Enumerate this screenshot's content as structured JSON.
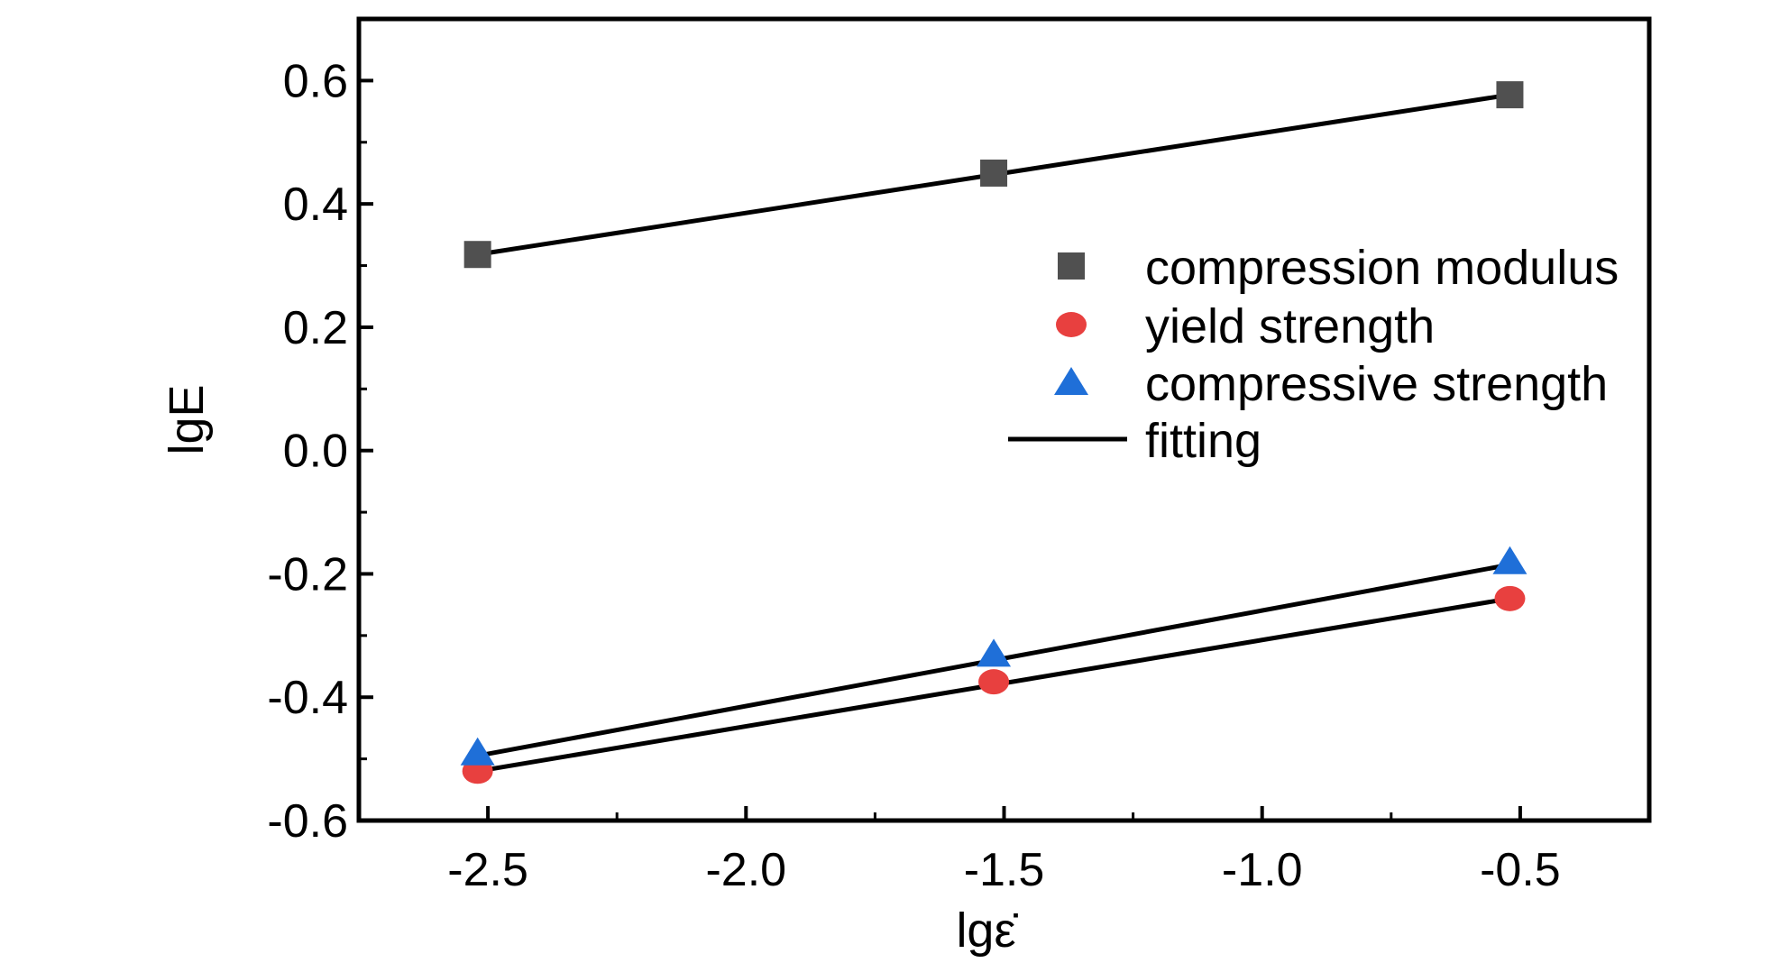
{
  "chart_data": {
    "type": "scatter",
    "xlabel": "lgε̇",
    "ylabel": "lgE",
    "xlim": [
      -2.75,
      -0.25
    ],
    "ylim": [
      -0.6,
      0.7
    ],
    "x_ticks": [
      -2.5,
      -2.0,
      -1.5,
      -1.0,
      -0.5
    ],
    "x_tick_labels": [
      "-2.5",
      "-2.0",
      "-1.5",
      "-1.0",
      "-0.5"
    ],
    "y_ticks": [
      -0.6,
      -0.4,
      -0.2,
      0.0,
      0.2,
      0.4,
      0.6
    ],
    "y_tick_labels": [
      "-0.6",
      "-0.4",
      "-0.2",
      "0.0",
      "0.2",
      "0.4",
      "0.6"
    ],
    "grid": false,
    "legend_position": "right",
    "series": [
      {
        "name": "compression modulus",
        "marker": "square",
        "color": "#505050",
        "x": [
          -2.52,
          -1.52,
          -0.52
        ],
        "y": [
          0.318,
          0.45,
          0.577
        ],
        "fit": [
          [
            -2.52,
            0.318
          ],
          [
            -0.52,
            0.577
          ]
        ]
      },
      {
        "name": "yield strength",
        "marker": "circle",
        "color": "#e8403f",
        "x": [
          -2.52,
          -1.52,
          -0.52
        ],
        "y": [
          -0.52,
          -0.375,
          -0.24
        ],
        "fit": [
          [
            -2.52,
            -0.52
          ],
          [
            -0.52,
            -0.24
          ]
        ]
      },
      {
        "name": "compressive strength",
        "marker": "triangle",
        "color": "#1f6fd8",
        "x": [
          -2.52,
          -1.52,
          -0.52
        ],
        "y": [
          -0.49,
          -0.33,
          -0.18
        ],
        "fit": [
          [
            -2.52,
            -0.495
          ],
          [
            -0.52,
            -0.185
          ]
        ]
      }
    ],
    "legend": [
      {
        "label": "compression modulus",
        "marker": "square",
        "color": "#505050"
      },
      {
        "label": "yield strength",
        "marker": "circle",
        "color": "#e8403f"
      },
      {
        "label": "compressive strength",
        "marker": "triangle",
        "color": "#1f6fd8"
      },
      {
        "label": "fitting",
        "marker": "line",
        "color": "#000000"
      }
    ]
  }
}
